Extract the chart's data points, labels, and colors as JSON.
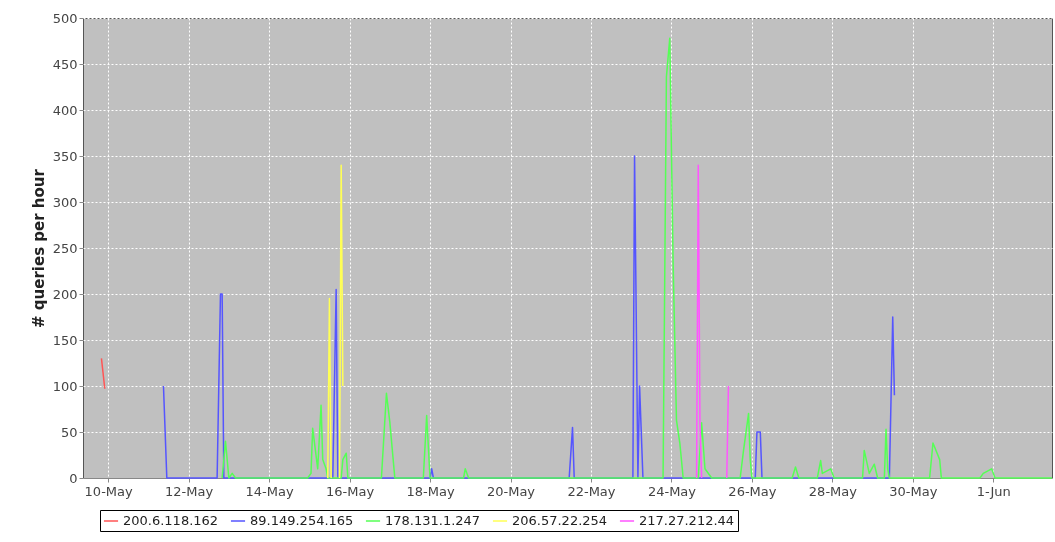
{
  "chart_data": {
    "type": "line",
    "ylabel": "# queries per hour",
    "xlim": [
      "--05-09T09:00",
      "--06-02T11:00"
    ],
    "xticks": [
      {
        "value": "--05-10",
        "label": "10-May"
      },
      {
        "value": "--05-12",
        "label": "12-May"
      },
      {
        "value": "--05-14",
        "label": "14-May"
      },
      {
        "value": "--05-16",
        "label": "16-May"
      },
      {
        "value": "--05-18",
        "label": "18-May"
      },
      {
        "value": "--05-20",
        "label": "20-May"
      },
      {
        "value": "--05-22",
        "label": "22-May"
      },
      {
        "value": "--05-24",
        "label": "24-May"
      },
      {
        "value": "--05-26",
        "label": "26-May"
      },
      {
        "value": "--05-28",
        "label": "28-May"
      },
      {
        "value": "--05-30",
        "label": "30-May"
      },
      {
        "value": "--06-01",
        "label": "1-Jun"
      }
    ],
    "ylim": [
      0,
      500
    ],
    "yticks": [
      0,
      50,
      100,
      150,
      200,
      250,
      300,
      350,
      400,
      450,
      500
    ],
    "grid": true,
    "legend": "bottom",
    "series": [
      {
        "name": "200.6.118.162",
        "color": "#ff5555",
        "x": [
          "--05-09T20:00",
          "--05-09T22:00"
        ],
        "values": [
          130,
          97
        ]
      },
      {
        "name": "89.149.254.165",
        "color": "#5555ff",
        "x": [
          "--05-11T09:00",
          "--05-11T11:00",
          "--05-12T17:00",
          "--05-12T19:00",
          "--05-12T20:00",
          "--05-12T21:00",
          "--05-15T14:00",
          "--05-15T16:00",
          "--05-15T17:00",
          "--05-18T00:00",
          "--05-18T01:00",
          "--05-18T02:00",
          "--05-21T11:00",
          "--05-21T13:00",
          "--05-21T14:00",
          "--05-23T01:00",
          "--05-23T02:00",
          "--05-23T04:00",
          "--05-23T05:00",
          "--05-23T07:00",
          "--05-26T02:00",
          "--05-26T03:00",
          "--05-26T05:00",
          "--05-26T06:00",
          "--05-29T10:00",
          "--05-29T12:00",
          "--05-29T13:00"
        ],
        "values": [
          100,
          0,
          0,
          200,
          200,
          0,
          0,
          205,
          0,
          0,
          10,
          0,
          0,
          55,
          0,
          0,
          350,
          0,
          100,
          0,
          0,
          50,
          50,
          0,
          0,
          175,
          90
        ]
      },
      {
        "name": "178.131.1.247",
        "color": "#55ff55",
        "x": [
          "--05-12T20:00",
          "--05-12T22:00",
          "--05-13T00:00",
          "--05-13T02:00",
          "--05-13T04:00",
          "--05-14T23:00",
          "--05-15T01:00",
          "--05-15T02:00",
          "--05-15T05:00",
          "--05-15T07:00",
          "--05-15T08:00",
          "--05-15T10:00",
          "--05-15T11:00",
          "--05-15T19:00",
          "--05-15T20:00",
          "--05-15T22:00",
          "--05-15T23:00",
          "--05-16T19:00",
          "--05-16T22:00",
          "--05-17T00:00",
          "--05-17T03:00",
          "--05-17T20:00",
          "--05-17T22:00",
          "--05-18T00:00",
          "--05-18T20:00",
          "--05-18T21:00",
          "--05-18T23:00",
          "--05-23T19:00",
          "--05-23T21:00",
          "--05-23T23:00",
          "--05-24T01:00",
          "--05-24T03:00",
          "--05-24T05:00",
          "--05-24T07:00",
          "--05-24T16:00",
          "--05-24T18:00",
          "--05-24T20:00",
          "--05-25T00:00",
          "--05-25T17:00",
          "--05-25T19:00",
          "--05-25T22:00",
          "--05-25T23:00",
          "--05-26T00:00",
          "--05-27T00:00",
          "--05-27T02:00",
          "--05-27T04:00",
          "--05-27T15:00",
          "--05-27T17:00",
          "--05-27T18:00",
          "--05-27T23:00",
          "--05-28T01:00",
          "--05-28T18:00",
          "--05-28T19:00",
          "--05-28T22:00",
          "--05-29T01:00",
          "--05-29T03:00",
          "--05-29T07:00",
          "--05-29T08:00",
          "--05-29T09:00",
          "--05-29T10:00",
          "--05-30T10:00",
          "--05-30T12:00",
          "--05-30T16:00",
          "--05-30T17:00",
          "--05-31T16:00",
          "--05-31T18:00",
          "--05-31T23:00",
          "--06-01T01:00",
          "--06-02T11:00"
        ],
        "values": [
          0,
          40,
          0,
          5,
          0,
          0,
          5,
          54,
          10,
          79,
          20,
          10,
          0,
          0,
          20,
          27,
          0,
          0,
          92,
          61,
          0,
          0,
          68,
          0,
          0,
          10,
          0,
          0,
          436,
          478,
          234,
          63,
          38,
          0,
          0,
          60,
          10,
          0,
          0,
          30,
          70,
          20,
          0,
          0,
          12,
          0,
          0,
          19,
          5,
          10,
          0,
          0,
          30,
          5,
          15,
          0,
          0,
          53,
          10,
          0,
          0,
          38,
          20,
          0,
          0,
          5,
          10,
          0,
          0
        ]
      },
      {
        "name": "206.57.22.254",
        "color": "#ffff55",
        "x": [
          "--05-15T11:00",
          "--05-15T12:00",
          "--05-15T13:00",
          "--05-15T14:00",
          "--05-15T18:00",
          "--05-15T19:00",
          "--05-15T20:00"
        ],
        "values": [
          0,
          195,
          0,
          null,
          0,
          340,
          100
        ]
      },
      {
        "name": "217.27.212.44",
        "color": "#ff55ff",
        "x": [
          "--05-24T15:00",
          "--05-24T16:00",
          "--05-24T17:00",
          "--05-24T18:00",
          "--05-24T19:00",
          "--05-25T09:00",
          "--05-25T10:00"
        ],
        "values": [
          0,
          340,
          60,
          0,
          null,
          0,
          100
        ]
      }
    ]
  }
}
